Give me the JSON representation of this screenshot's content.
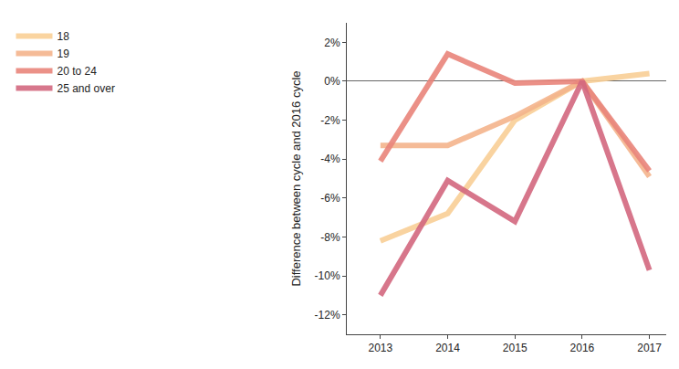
{
  "chart_data": {
    "type": "line",
    "y_label": "Difference between cycle and 2016 cycle",
    "x": [
      2013,
      2014,
      2015,
      2016,
      2017
    ],
    "xlim": [
      2012.5,
      2017.25
    ],
    "xticks": [
      2013,
      2014,
      2015,
      2016,
      2017
    ],
    "ylim": [
      -13,
      3
    ],
    "yticks": [
      {
        "value": -12,
        "label": "-12%"
      },
      {
        "value": -10,
        "label": "-10%"
      },
      {
        "value": -8,
        "label": "-8%"
      },
      {
        "value": -6,
        "label": "-6%"
      },
      {
        "value": -4,
        "label": "-4%"
      },
      {
        "value": -2,
        "label": "-2%"
      },
      {
        "value": 0,
        "label": "0%"
      },
      {
        "value": 2,
        "label": "2%"
      }
    ],
    "grid": false,
    "legend": "top left",
    "series": [
      {
        "name": "18",
        "color": "#f9cf96",
        "values": [
          -8.2,
          -6.8,
          -2.0,
          0,
          0.4
        ]
      },
      {
        "name": "19",
        "color": "#f4b48c",
        "values": [
          -3.3,
          -3.3,
          -1.8,
          0,
          -4.9
        ]
      },
      {
        "name": "20 to 24",
        "color": "#e9857b",
        "values": [
          -4.1,
          1.4,
          -0.1,
          0,
          -4.6
        ]
      },
      {
        "name": "25 and over",
        "color": "#d3687f",
        "values": [
          -11.0,
          -5.1,
          -7.2,
          0,
          -9.7
        ]
      }
    ]
  }
}
